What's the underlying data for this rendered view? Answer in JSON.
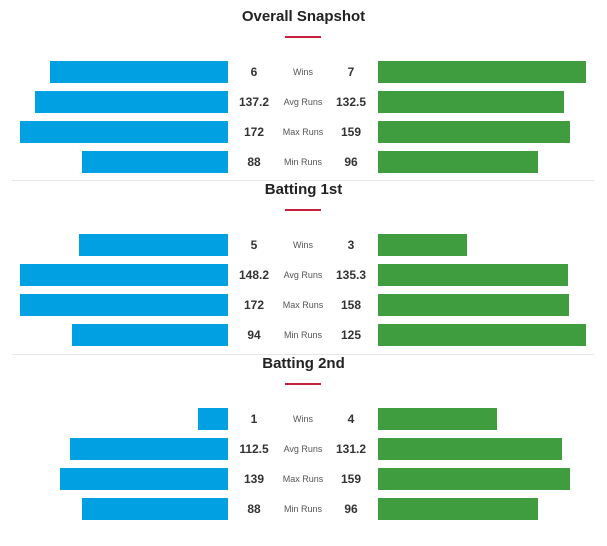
{
  "colors": {
    "left_bar": "#00a0e3",
    "right_bar": "#3f9c3f",
    "accent_underline": "#c4213d"
  },
  "chart_data": [
    {
      "type": "bar",
      "title": "Overall Snapshot",
      "categories": [
        "Wins",
        "Avg Runs",
        "Max Runs",
        "Min Runs"
      ],
      "series": [
        {
          "values": [
            6,
            137.2,
            172,
            88
          ]
        },
        {
          "values": [
            7,
            132.5,
            159,
            96
          ]
        }
      ]
    },
    {
      "type": "bar",
      "title": "Batting 1st",
      "categories": [
        "Wins",
        "Avg Runs",
        "Max Runs",
        "Min Runs"
      ],
      "series": [
        {
          "values": [
            5,
            148.2,
            172,
            94
          ]
        },
        {
          "values": [
            3,
            135.3,
            158,
            125
          ]
        }
      ]
    },
    {
      "type": "bar",
      "title": "Batting 2nd",
      "categories": [
        "Wins",
        "Avg Runs",
        "Max Runs",
        "Min Runs"
      ],
      "series": [
        {
          "values": [
            1,
            112.5,
            139,
            88
          ]
        },
        {
          "values": [
            4,
            131.2,
            159,
            96
          ]
        }
      ]
    }
  ]
}
